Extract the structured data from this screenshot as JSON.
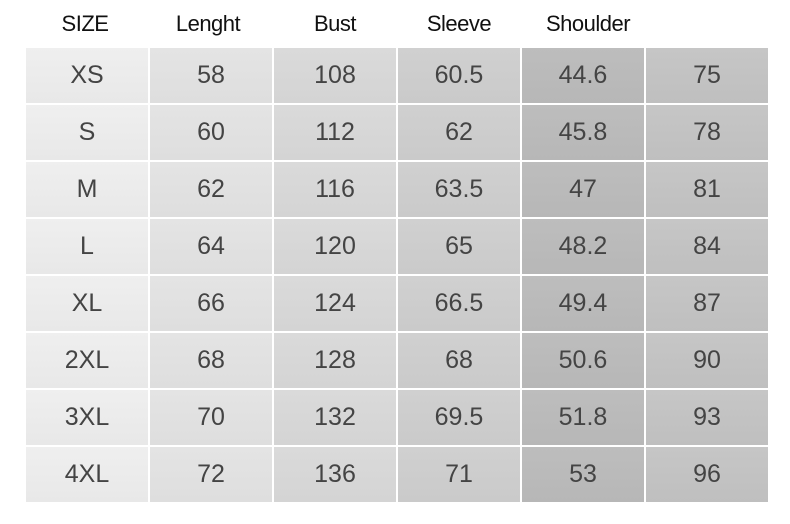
{
  "headers": [
    "SIZE",
    "Lenght",
    "Bust",
    "Sleeve",
    "Shoulder",
    ""
  ],
  "rows": [
    [
      "XS",
      "58",
      "108",
      "60.5",
      "44.6",
      "75"
    ],
    [
      "S",
      "60",
      "112",
      "62",
      "45.8",
      "78"
    ],
    [
      "M",
      "62",
      "116",
      "63.5",
      "47",
      "81"
    ],
    [
      "L",
      "64",
      "120",
      "65",
      "48.2",
      "84"
    ],
    [
      "XL",
      "66",
      "124",
      "66.5",
      "49.4",
      "87"
    ],
    [
      "2XL",
      "68",
      "128",
      "68",
      "50.6",
      "90"
    ],
    [
      "3XL",
      "70",
      "132",
      "69.5",
      "51.8",
      "93"
    ],
    [
      "4XL",
      "72",
      "136",
      "71",
      "53",
      "96"
    ]
  ],
  "column_colors": [
    "#ececec",
    "#e1e1e1",
    "#d7d7d7",
    "#cdcdcd",
    "#bababa",
    "#c2c2c2"
  ]
}
